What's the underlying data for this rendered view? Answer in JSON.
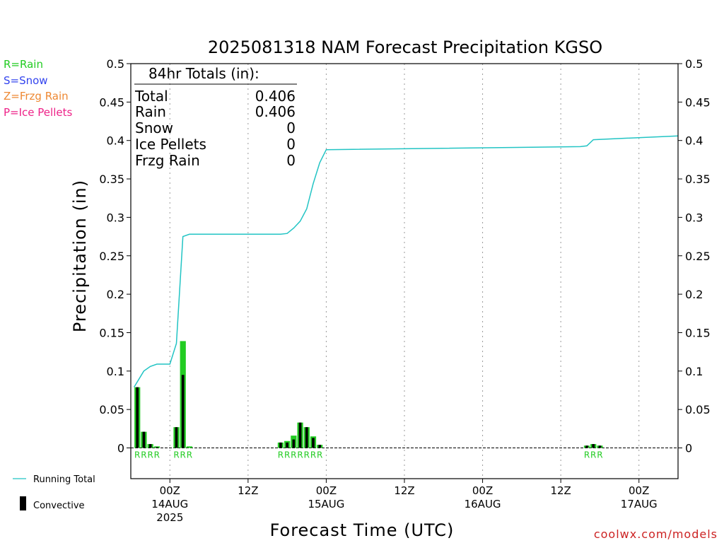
{
  "colors": {
    "rain": "#22cc22",
    "snow": "#3344ee",
    "frzg_rain": "#ee8833",
    "ice_pellets": "#ee2288",
    "running_total": "#22c4c4",
    "convective": "#000000",
    "credit": "#cc2222"
  },
  "legend": {
    "rain": "R=Rain",
    "snow": "S=Snow",
    "frzg_rain": "Z=Frzg Rain",
    "ice_pellets": "P=Ice Pellets",
    "running_total": "Running Total",
    "convective": "Convective"
  },
  "totals": {
    "header": "84hr Totals (in):",
    "rows": [
      {
        "label": "Total",
        "value": "0.406"
      },
      {
        "label": "Rain",
        "value": "0.406"
      },
      {
        "label": "Snow",
        "value": "0"
      },
      {
        "label": "Ice Pellets",
        "value": "0"
      },
      {
        "label": "Frzg Rain",
        "value": "0"
      }
    ]
  },
  "credit": "coolwx.com/models",
  "chart_data": {
    "type": "bar",
    "title": "2025081318 NAM Forecast Precipitation KGSO",
    "xlabel": "Forecast Time (UTC)",
    "ylabel": "Precipitation (in)",
    "ylim": [
      -0.04,
      0.5
    ],
    "y_ticks": [
      0,
      0.05,
      0.1,
      0.15,
      0.2,
      0.25,
      0.3,
      0.35,
      0.4,
      0.45,
      0.5
    ],
    "y_tick_labels": [
      "0",
      "0.05",
      "0.1",
      "0.15",
      "0.2",
      "0.25",
      "0.3",
      "0.35",
      "0.4",
      "0.45",
      "0.5"
    ],
    "x_unit": "forecast hour",
    "xlim": [
      0,
      84
    ],
    "x_ticks": [
      {
        "hour": 6,
        "lines": [
          "00Z",
          "14AUG",
          "2025"
        ]
      },
      {
        "hour": 18,
        "lines": [
          "12Z"
        ]
      },
      {
        "hour": 30,
        "lines": [
          "00Z",
          "15AUG"
        ]
      },
      {
        "hour": 42,
        "lines": [
          "12Z"
        ]
      },
      {
        "hour": 54,
        "lines": [
          "00Z",
          "16AUG"
        ]
      },
      {
        "hour": 66,
        "lines": [
          "12Z"
        ]
      },
      {
        "hour": 78,
        "lines": [
          "00Z",
          "17AUG"
        ]
      }
    ],
    "grid": "vertical dotted",
    "bars": [
      {
        "hour": 1,
        "total": 0.079,
        "convective": 0.079,
        "type": "R"
      },
      {
        "hour": 2,
        "total": 0.021,
        "convective": 0.021,
        "type": "R"
      },
      {
        "hour": 3,
        "total": 0.005,
        "convective": 0.005,
        "type": "R"
      },
      {
        "hour": 4,
        "total": 0.002,
        "convective": 0.001,
        "type": "R"
      },
      {
        "hour": 7,
        "total": 0.027,
        "convective": 0.027,
        "type": "R"
      },
      {
        "hour": 8,
        "total": 0.139,
        "convective": 0.095,
        "type": "R"
      },
      {
        "hour": 9,
        "total": 0.002,
        "convective": 0.0,
        "type": "R"
      },
      {
        "hour": 23,
        "total": 0.007,
        "convective": 0.007,
        "type": "R"
      },
      {
        "hour": 24,
        "total": 0.009,
        "convective": 0.007,
        "type": "R"
      },
      {
        "hour": 25,
        "total": 0.016,
        "convective": 0.011,
        "type": "R"
      },
      {
        "hour": 26,
        "total": 0.033,
        "convective": 0.033,
        "type": "R"
      },
      {
        "hour": 27,
        "total": 0.027,
        "convective": 0.027,
        "type": "R"
      },
      {
        "hour": 28,
        "total": 0.015,
        "convective": 0.013,
        "type": "R"
      },
      {
        "hour": 29,
        "total": 0.004,
        "convective": 0.004,
        "type": "R"
      },
      {
        "hour": 70,
        "total": 0.003,
        "convective": 0.003,
        "type": "R"
      },
      {
        "hour": 71,
        "total": 0.005,
        "convective": 0.005,
        "type": "R"
      },
      {
        "hour": 72,
        "total": 0.003,
        "convective": 0.003,
        "type": "R"
      }
    ],
    "series": [
      {
        "name": "Running Total",
        "x": [
          0.5,
          2,
          3,
          4,
          6,
          7,
          8,
          9,
          23,
          24,
          25,
          26,
          27,
          28,
          29,
          30,
          69,
          70,
          71,
          84
        ],
        "y": [
          0.079,
          0.1,
          0.106,
          0.109,
          0.109,
          0.136,
          0.275,
          0.278,
          0.278,
          0.279,
          0.286,
          0.295,
          0.311,
          0.344,
          0.371,
          0.388,
          0.392,
          0.393,
          0.401,
          0.406
        ]
      }
    ]
  }
}
